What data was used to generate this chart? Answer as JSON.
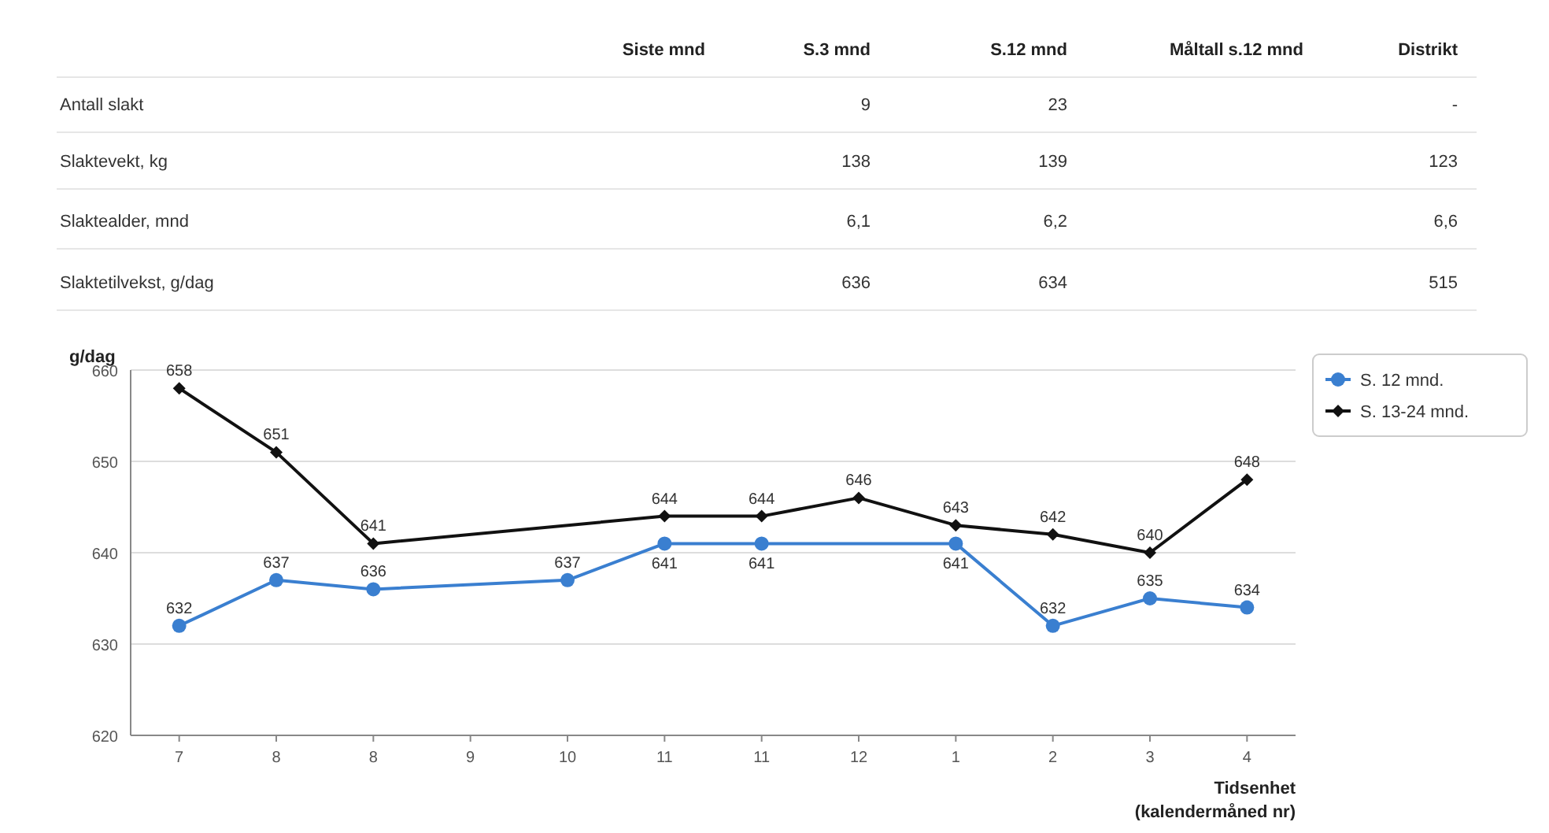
{
  "chart_data": [
    {
      "type": "other",
      "categories": [
        "Siste mnd",
        "S.3 mnd",
        "S.12 mnd",
        "Måltall s.12 mnd",
        "Distrikt"
      ],
      "y_categories": [
        "Antall slakt",
        "Slaktevekt, kg",
        "Slaktealder, mnd",
        "Slaktetilvekst, g/dag"
      ],
      "cell_labels": [
        [
          null,
          "9",
          "23",
          null,
          "-"
        ],
        [
          null,
          "138",
          "139",
          null,
          "123"
        ],
        [
          null,
          "6,1",
          "6,2",
          null,
          "6,6"
        ],
        [
          null,
          "636",
          "634",
          null,
          "515"
        ]
      ]
    },
    {
      "type": "line",
      "ylabel": "g/dag",
      "xlabel": "Tidsenhet\n(kalendermåned nr)",
      "categories": [
        "7",
        "8",
        "8",
        "9",
        "10",
        "11",
        "11",
        "12",
        "1",
        "2",
        "3",
        "4"
      ],
      "series": [
        {
          "name": "S. 12 mnd.",
          "color": "#3a7fd0",
          "marker": "circle",
          "values": [
            632,
            637,
            636,
            null,
            637,
            641,
            641,
            null,
            641,
            632,
            635,
            634
          ]
        },
        {
          "name": "S. 13-24 mnd.",
          "color": "#111111",
          "marker": "diamond",
          "values": [
            658,
            651,
            641,
            null,
            null,
            644,
            644,
            646,
            643,
            642,
            640,
            648
          ]
        }
      ],
      "ylim": [
        620,
        660
      ],
      "yticks": [
        620,
        630,
        640,
        650,
        660
      ],
      "grid": "y",
      "legend": "top right",
      "data_labels": true
    }
  ]
}
